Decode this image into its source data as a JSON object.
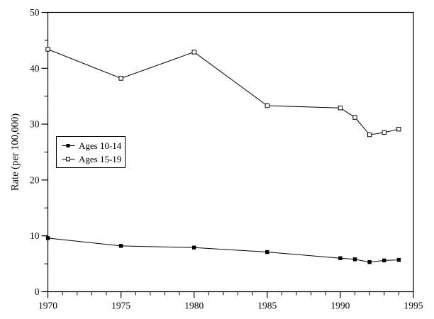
{
  "figure": {
    "background_color": "#ffffff",
    "axis_color": "#000000"
  },
  "chart_data": {
    "type": "line",
    "title": "",
    "xlabel": "",
    "ylabel": "Rate (per 100,000)",
    "x": [
      1970,
      1975,
      1980,
      1985,
      1990,
      1991,
      1992,
      1993,
      1994
    ],
    "series": [
      {
        "name": "Ages 10-14",
        "marker": "filled-square",
        "color": "#000000",
        "values": [
          9.6,
          8.2,
          7.9,
          7.1,
          6.0,
          5.8,
          5.3,
          5.6,
          5.7
        ]
      },
      {
        "name": "Ages 15-19",
        "marker": "open-square",
        "color": "#000000",
        "values": [
          43.4,
          38.2,
          42.9,
          33.3,
          32.9,
          31.2,
          28.1,
          28.5,
          29.1
        ]
      }
    ],
    "xlim": [
      1970,
      1995
    ],
    "ylim": [
      0,
      50
    ],
    "x_major_ticks": [
      1970,
      1975,
      1980,
      1985,
      1990,
      1995
    ],
    "x_tick_labels": [
      "1970",
      "1975",
      "1980",
      "1985",
      "1990",
      "1995"
    ],
    "x_minor_tick_step": 1,
    "y_major_ticks": [
      0,
      10,
      20,
      30,
      40,
      50
    ],
    "y_tick_labels": [
      "0",
      "10",
      "20",
      "30",
      "40",
      "50"
    ],
    "y_minor_tick_step": 5,
    "grid": false,
    "legend_position": "middle-left"
  }
}
